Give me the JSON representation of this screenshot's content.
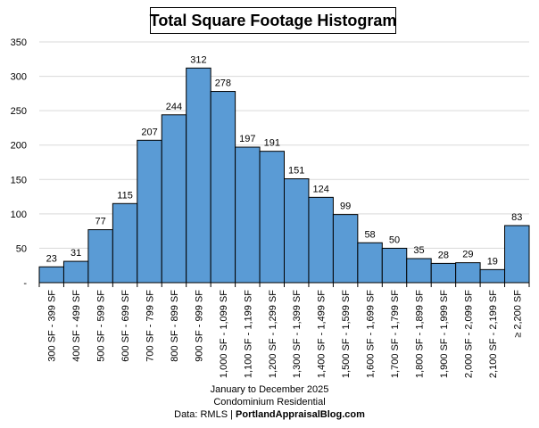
{
  "title": "Total Square Footage Histogram",
  "footer": {
    "line1": "January to December 2025",
    "line2": "Condominium Residential",
    "source_prefix": "Data: RMLS | ",
    "source_site": "PortlandAppraisalBlog.com"
  },
  "colors": {
    "bar_fill": "#5a9bd5",
    "bar_stroke": "#000000",
    "gridline": "#d9d9d9",
    "axis": "#000000"
  },
  "chart_data": {
    "type": "bar",
    "title": "Total Square Footage Histogram",
    "categories": [
      "300 SF - 399 SF",
      "400 SF - 499 SF",
      "500 SF - 599 SF",
      "600 SF - 699 SF",
      "700 SF - 799 SF",
      "800 SF - 899 SF",
      "900 SF - 999 SF",
      "1,000 SF - 1,099 SF",
      "1,100 SF - 1,199 SF",
      "1,200 SF - 1,299 SF",
      "1,300 SF - 1,399 SF",
      "1,400 SF - 1,499 SF",
      "1,500 SF - 1,599 SF",
      "1,600 SF - 1,699 SF",
      "1,700 SF - 1,799 SF",
      "1,800 SF - 1,899 SF",
      "1,900 SF - 1,999 SF",
      "2,000 SF - 2,099 SF",
      "2,100 SF - 2,199 SF",
      "≥ 2,200 SF"
    ],
    "values": [
      23,
      31,
      77,
      115,
      207,
      244,
      312,
      278,
      197,
      191,
      151,
      124,
      99,
      58,
      50,
      35,
      28,
      29,
      19,
      83
    ],
    "ylim": [
      0,
      350
    ],
    "yticks": [
      0,
      50,
      100,
      150,
      200,
      250,
      300,
      350
    ],
    "ytick_labels": [
      "-",
      "50",
      "100",
      "150",
      "200",
      "250",
      "300",
      "350"
    ],
    "grid": true,
    "xlabel": "",
    "ylabel": ""
  }
}
